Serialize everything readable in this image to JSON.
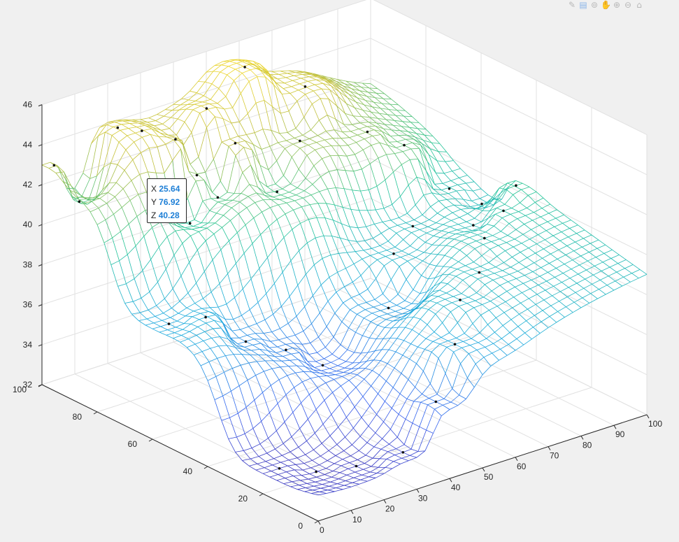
{
  "toolbar": {
    "icons": [
      "brush-icon",
      "datatip-icon",
      "rotate-icon",
      "pan-icon",
      "zoom-in-icon",
      "zoom-out-icon",
      "home-icon"
    ],
    "glyphs": [
      "✎",
      "▤",
      "⊚",
      "✋",
      "⊕",
      "⊖",
      "⌂"
    ]
  },
  "datatip": {
    "x_label": "X",
    "x_value": "25.64",
    "y_label": "Y",
    "y_value": "76.92",
    "z_label": "Z",
    "z_value": "40.28"
  },
  "chart_data": {
    "type": "surface",
    "colormap": "parula",
    "grid": true,
    "xlabel": "",
    "ylabel": "",
    "zlabel": "",
    "xlim": [
      0,
      100
    ],
    "ylim": [
      0,
      100
    ],
    "zlim": [
      32,
      46
    ],
    "x_ticks": [
      "0",
      "10",
      "20",
      "30",
      "40",
      "50",
      "60",
      "70",
      "80",
      "90",
      "100"
    ],
    "y_ticks": [
      "0",
      "20",
      "40",
      "60",
      "80",
      "100"
    ],
    "z_ticks": [
      "32",
      "34",
      "36",
      "38",
      "40",
      "42",
      "44",
      "46"
    ],
    "scatter_points": [
      {
        "x": 2,
        "y": 98,
        "z": 43.0
      },
      {
        "x": 8,
        "y": 96,
        "z": 41.0
      },
      {
        "x": 18,
        "y": 94,
        "z": 44.3
      },
      {
        "x": 22,
        "y": 90,
        "z": 44.2
      },
      {
        "x": 25.64,
        "y": 76.92,
        "z": 40.28
      },
      {
        "x": 28,
        "y": 85,
        "z": 43.8
      },
      {
        "x": 32,
        "y": 82,
        "z": 42.0
      },
      {
        "x": 35,
        "y": 78,
        "z": 41.0
      },
      {
        "x": 40,
        "y": 88,
        "z": 44.5
      },
      {
        "x": 42,
        "y": 80,
        "z": 43.2
      },
      {
        "x": 48,
        "y": 72,
        "z": 41.0
      },
      {
        "x": 55,
        "y": 92,
        "z": 45.5
      },
      {
        "x": 60,
        "y": 78,
        "z": 42.5
      },
      {
        "x": 70,
        "y": 88,
        "z": 44.0
      },
      {
        "x": 78,
        "y": 75,
        "z": 42.2
      },
      {
        "x": 85,
        "y": 70,
        "z": 41.5
      },
      {
        "x": 92,
        "y": 62,
        "z": 39.5
      },
      {
        "x": 96,
        "y": 55,
        "z": 39.0
      },
      {
        "x": 5,
        "y": 60,
        "z": 37.5
      },
      {
        "x": 12,
        "y": 55,
        "z": 37.8
      },
      {
        "x": 20,
        "y": 50,
        "z": 36.5
      },
      {
        "x": 28,
        "y": 45,
        "z": 36.0
      },
      {
        "x": 35,
        "y": 40,
        "z": 35.2
      },
      {
        "x": 5,
        "y": 20,
        "z": 33.0
      },
      {
        "x": 12,
        "y": 15,
        "z": 32.8
      },
      {
        "x": 20,
        "y": 10,
        "z": 33.0
      },
      {
        "x": 30,
        "y": 5,
        "z": 33.5
      },
      {
        "x": 40,
        "y": 5,
        "z": 35.5
      },
      {
        "x": 50,
        "y": 10,
        "z": 37.5
      },
      {
        "x": 60,
        "y": 20,
        "z": 38.5
      },
      {
        "x": 70,
        "y": 25,
        "z": 39.0
      },
      {
        "x": 80,
        "y": 35,
        "z": 39.5
      },
      {
        "x": 90,
        "y": 40,
        "z": 40.0
      },
      {
        "x": 98,
        "y": 45,
        "z": 40.5
      },
      {
        "x": 55,
        "y": 40,
        "z": 37.0
      },
      {
        "x": 65,
        "y": 50,
        "z": 38.5
      },
      {
        "x": 75,
        "y": 55,
        "z": 39.0
      },
      {
        "x": 85,
        "y": 45,
        "z": 39.2
      }
    ]
  }
}
